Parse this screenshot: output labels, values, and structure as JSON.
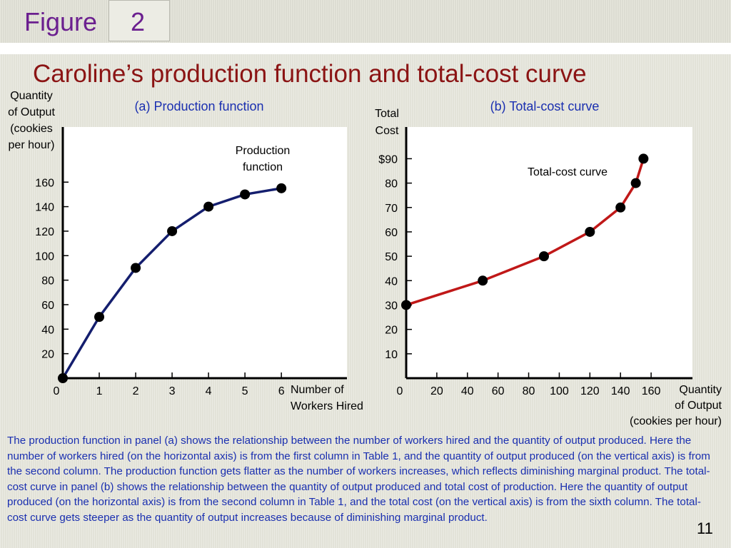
{
  "slide": {
    "figure_word": "Figure",
    "figure_number": "2",
    "title": "Caroline’s production function and total-cost curve",
    "caption": "The production function in panel (a) shows the relationship between the number of workers hired and the quantity of output produced. Here the number of workers hired (on the horizontal axis) is from the first column in Table 1, and the quantity of output produced (on the vertical axis) is from the second column. The production function gets flatter as the number of workers increases, which reflects diminishing marginal product. The total-cost curve in panel (b) shows the relationship between the quantity of output produced and total cost of production. Here the quantity of output produced (on the horizontal axis) is from the second column in Table 1, and the total cost (on the vertical axis) is from the sixth column. The total-cost curve gets steeper as the quantity of output increases because of diminishing marginal product.",
    "page_number": "11"
  },
  "chart_data": [
    {
      "type": "line",
      "title": "(a) Production function",
      "ylabel_lines": [
        "Quantity",
        "of Output",
        "(cookies",
        "per hour)"
      ],
      "xlabel_lines": [
        "Number of",
        "Workers Hired"
      ],
      "curve_label_lines": [
        "Production",
        "function"
      ],
      "x_ticks": [
        "0",
        "1",
        "2",
        "3",
        "4",
        "5",
        "6"
      ],
      "x_tick_values": [
        0,
        1,
        2,
        3,
        4,
        5,
        6
      ],
      "y_ticks": [
        "20",
        "40",
        "60",
        "80",
        "100",
        "120",
        "140",
        "160"
      ],
      "y_tick_values": [
        20,
        40,
        60,
        80,
        100,
        120,
        140,
        160
      ],
      "xlim": [
        0,
        7.8
      ],
      "ylim": [
        0,
        205
      ],
      "series": [
        {
          "x": [
            0,
            1,
            2,
            3,
            4,
            5,
            6
          ],
          "y": [
            0,
            50,
            90,
            120,
            140,
            150,
            155
          ],
          "color": "#141e6e"
        }
      ],
      "grid": false
    },
    {
      "type": "line",
      "title": "(b) Total-cost curve",
      "ylabel_lines": [
        "Total",
        "Cost"
      ],
      "xlabel_lines": [
        "Quantity",
        "of Output",
        "(cookies per hour)"
      ],
      "curve_label_lines": [
        "Total-cost curve"
      ],
      "x_ticks": [
        "0",
        "20",
        "40",
        "60",
        "80",
        "100",
        "120",
        "140",
        "160"
      ],
      "x_tick_values": [
        0,
        20,
        40,
        60,
        80,
        100,
        120,
        140,
        160
      ],
      "y_ticks": [
        "10",
        "20",
        "30",
        "40",
        "50",
        "60",
        "70",
        "80",
        "$90"
      ],
      "y_tick_values": [
        10,
        20,
        30,
        40,
        50,
        60,
        70,
        80,
        90
      ],
      "xlim": [
        0,
        187
      ],
      "ylim": [
        0,
        103
      ],
      "series": [
        {
          "x": [
            0,
            50,
            90,
            120,
            140,
            150,
            155
          ],
          "y": [
            30,
            40,
            50,
            60,
            70,
            80,
            90
          ],
          "color": "#c01818"
        }
      ],
      "grid": false
    }
  ]
}
